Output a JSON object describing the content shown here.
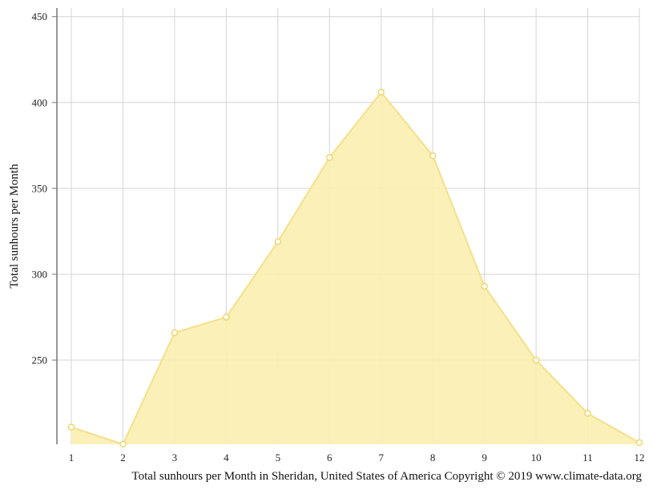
{
  "chart_data": {
    "type": "area",
    "x": [
      "1",
      "2",
      "3",
      "4",
      "5",
      "6",
      "7",
      "8",
      "9",
      "10",
      "11",
      "12"
    ],
    "series": [
      {
        "values": [
          211,
          201,
          266,
          275,
          319,
          368,
          406,
          369,
          293,
          250,
          219,
          202
        ]
      }
    ],
    "x_tick_labels": [
      "1",
      "2",
      "3",
      "4",
      "5",
      "6",
      "7",
      "8",
      "9",
      "10",
      "11",
      "12"
    ],
    "y_tick_labels": [
      "250",
      "300",
      "350",
      "400",
      "450"
    ],
    "y_ticks": [
      250,
      300,
      350,
      400,
      450
    ],
    "ylim": [
      201,
      455
    ],
    "ylabel": "Total sunhours per Month",
    "xlabel": "",
    "caption": "Total sunhours per Month in Sheridan, United States of America Copyright © 2019 www.climate-data.org",
    "grid": true,
    "colors": {
      "fill": "#f9eeb0",
      "line": "#f5e08a",
      "marker_stroke": "#edd35c",
      "grid": "#d4d4d4",
      "axis": "#777777"
    }
  }
}
